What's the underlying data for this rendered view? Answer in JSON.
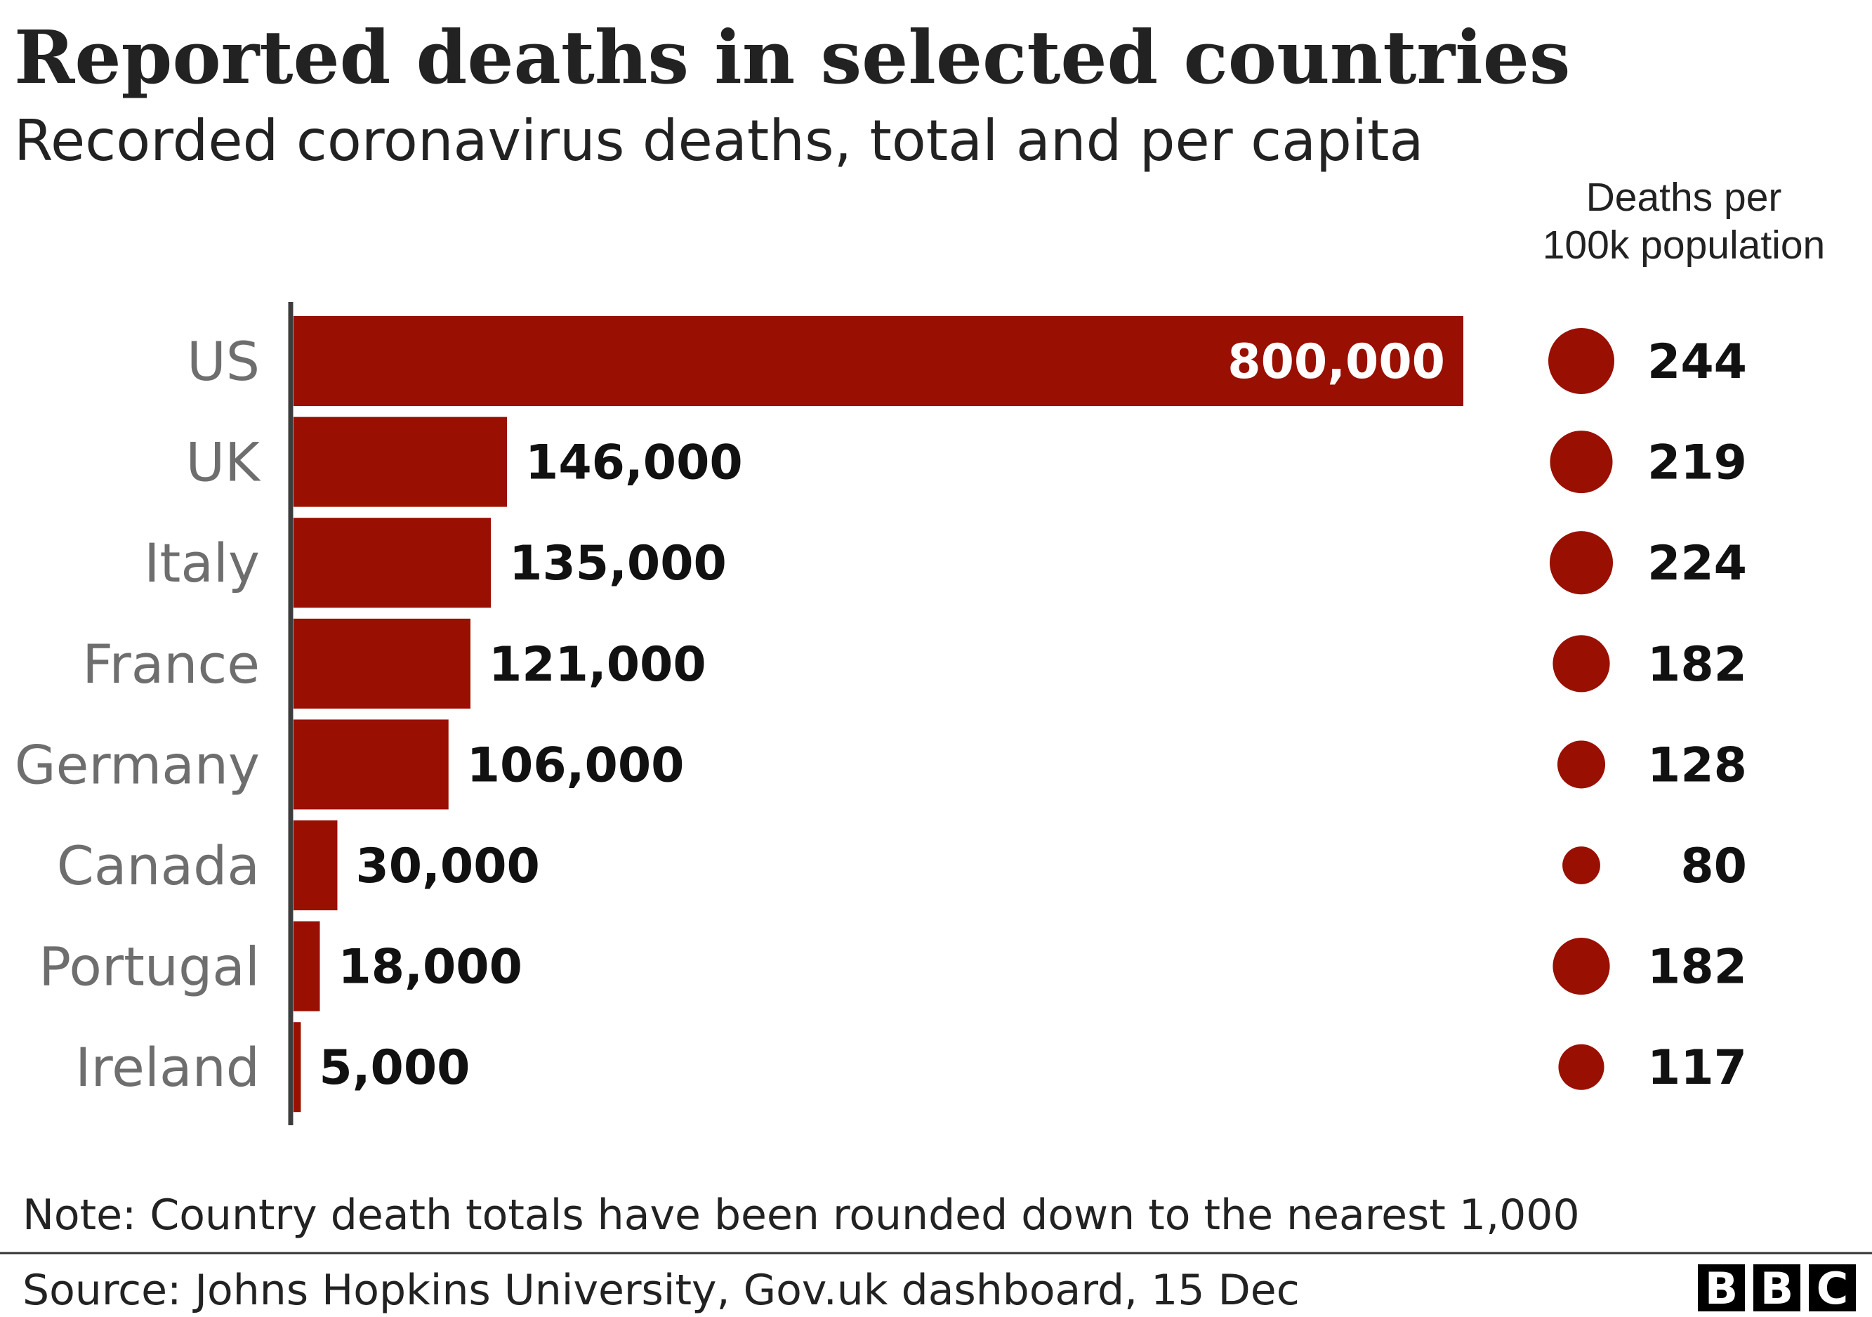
{
  "title": "Reported deaths in selected countries",
  "subtitle": "Recorded coronavirus deaths, total and per capita",
  "per_capita_header": [
    "Deaths per",
    "100k population"
  ],
  "note": "Note: Country death totals have been rounded down to the nearest 1,000",
  "source": "Source: Johns Hopkins University, Gov.uk dashboard, 15 Dec",
  "logo": [
    "B",
    "B",
    "C"
  ],
  "colors": {
    "bar": "#990f02",
    "dot": "#990f02",
    "axis": "#3c3c3c",
    "category_text": "#6e6e6e",
    "value_text": "#111111",
    "logo_bg": "#000000"
  },
  "chart_data": {
    "type": "bar",
    "orientation": "horizontal",
    "categories": [
      "US",
      "UK",
      "Italy",
      "France",
      "Germany",
      "Canada",
      "Portugal",
      "Ireland"
    ],
    "series": [
      {
        "values": [
          800000,
          146000,
          135000,
          121000,
          106000,
          30000,
          18000,
          5000
        ],
        "labels": [
          "800,000",
          "146,000",
          "135,000",
          "121,000",
          "106,000",
          "30,000",
          "18,000",
          "5,000"
        ]
      }
    ],
    "per_capita": {
      "values": [
        244,
        219,
        224,
        182,
        128,
        80,
        182,
        117
      ],
      "labels": [
        "244",
        "219",
        "224",
        "182",
        "128",
        "80",
        "182",
        "117"
      ]
    },
    "xlim": [
      0,
      800000
    ],
    "grid": false,
    "legend": "none"
  }
}
